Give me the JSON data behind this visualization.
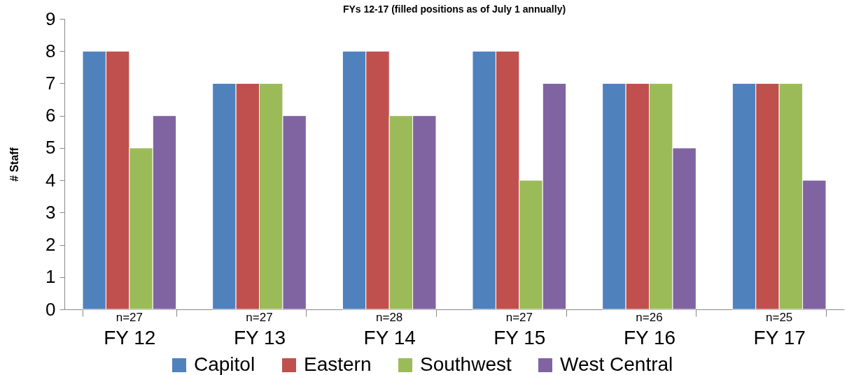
{
  "chart_data": {
    "type": "bar",
    "title": "FYs 12-17 (filled positions as of July 1 annually)",
    "ylabel": "# Staff",
    "categories": [
      "FY 12",
      "FY 13",
      "FY 14",
      "FY 15",
      "FY 16",
      "FY 17"
    ],
    "series": [
      {
        "name": "Capitol",
        "color": "#4f81bd",
        "values": [
          8,
          7,
          8,
          8,
          7,
          7
        ]
      },
      {
        "name": "Eastern",
        "color": "#c0504d",
        "values": [
          8,
          7,
          8,
          8,
          7,
          7
        ]
      },
      {
        "name": "Southwest",
        "color": "#9bbb59",
        "values": [
          5,
          7,
          6,
          4,
          7,
          7
        ]
      },
      {
        "name": "West Central",
        "color": "#8064a2",
        "values": [
          6,
          6,
          6,
          7,
          5,
          4
        ]
      }
    ],
    "ylim": [
      0,
      9
    ],
    "yticks": [
      0,
      1,
      2,
      3,
      4,
      5,
      6,
      7,
      8,
      9
    ],
    "legend": "bottom",
    "annotations": [
      "n=27",
      "n=27",
      "n=28",
      "n=27",
      "n=26",
      "n=25"
    ]
  }
}
